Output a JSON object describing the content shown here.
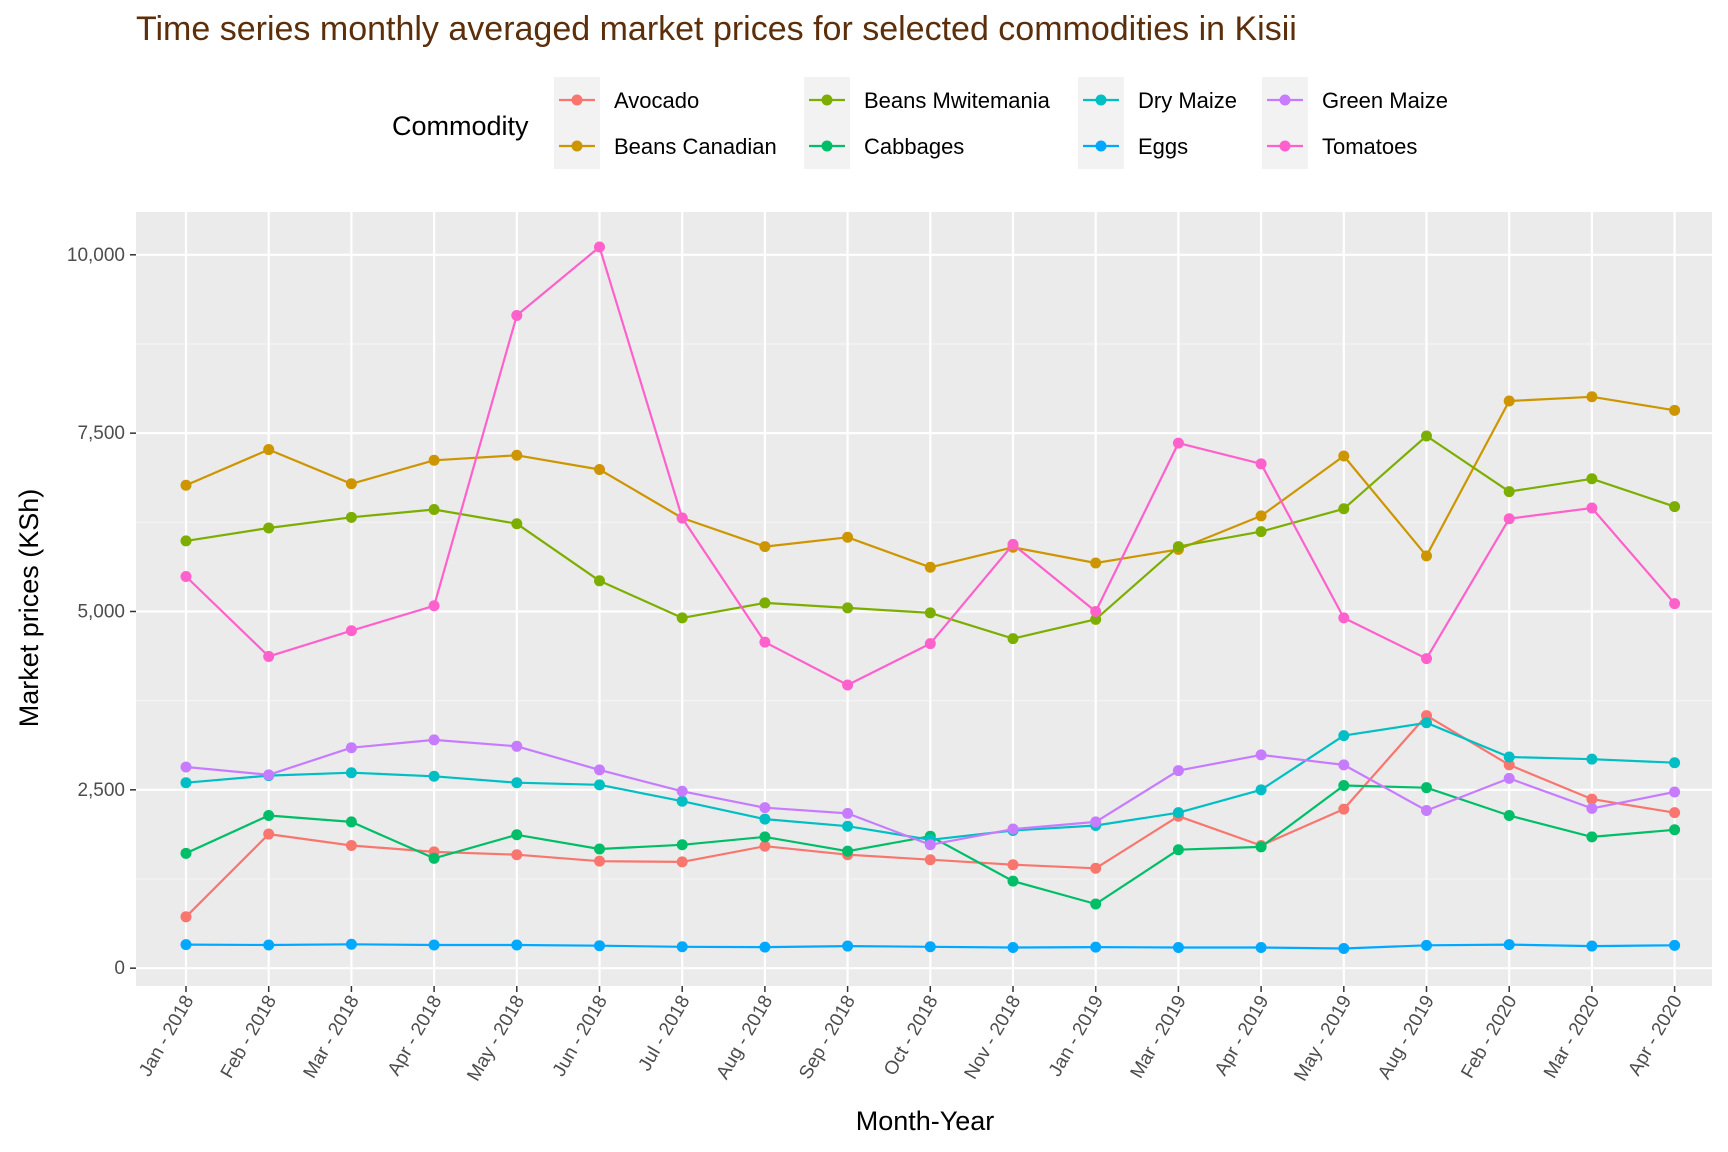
{
  "chart_data": {
    "type": "line",
    "title": "Time series monthly averaged market prices for selected commodities in Kisii",
    "xlabel": "Month-Year",
    "ylabel": "Market prices (KSh)",
    "legend_title": "Commodity",
    "legend_position": "top",
    "grid": true,
    "ylim": [
      -250,
      10600
    ],
    "yticks": [
      0,
      2500,
      5000,
      7500,
      10000
    ],
    "ytick_labels": [
      "0",
      "2,500",
      "5,000",
      "7,500",
      "10,000"
    ],
    "categories": [
      "Jan - 2018",
      "Feb - 2018",
      "Mar - 2018",
      "Apr - 2018",
      "May - 2018",
      "Jun - 2018",
      "Jul - 2018",
      "Aug - 2018",
      "Sep - 2018",
      "Oct - 2018",
      "Nov - 2018",
      "Jan - 2019",
      "Mar - 2019",
      "Apr - 2019",
      "May - 2019",
      "Aug - 2019",
      "Feb - 2020",
      "Mar - 2020",
      "Apr - 2020"
    ],
    "series": [
      {
        "name": "Avocado",
        "color": "#F8766D",
        "values": [
          720,
          1880,
          1720,
          1630,
          1590,
          1500,
          1490,
          1710,
          1590,
          1520,
          1450,
          1400,
          2130,
          1720,
          2230,
          3540,
          2850,
          2370,
          2180
        ]
      },
      {
        "name": "Beans Canadian",
        "color": "#CD9600",
        "values": [
          6770,
          7270,
          6790,
          7120,
          7190,
          6990,
          6310,
          5910,
          6040,
          5620,
          5900,
          5680,
          5870,
          6340,
          7180,
          5780,
          7950,
          8010,
          7820
        ]
      },
      {
        "name": "Beans Mwitemania",
        "color": "#7CAE00",
        "values": [
          5990,
          6170,
          6320,
          6430,
          6230,
          5430,
          4910,
          5120,
          5050,
          4980,
          4620,
          4890,
          5910,
          6120,
          6440,
          7460,
          6680,
          6860,
          6470
        ]
      },
      {
        "name": "Cabbages",
        "color": "#00BE67",
        "values": [
          1610,
          2140,
          2050,
          1540,
          1870,
          1670,
          1730,
          1840,
          1640,
          1850,
          1220,
          900,
          1660,
          1700,
          2560,
          2530,
          2140,
          1840,
          1940
        ]
      },
      {
        "name": "Dry Maize",
        "color": "#00BFC4",
        "values": [
          2600,
          2700,
          2740,
          2690,
          2600,
          2570,
          2340,
          2090,
          1990,
          1800,
          1930,
          2000,
          2180,
          2500,
          3260,
          3440,
          2960,
          2930,
          2880
        ]
      },
      {
        "name": "Eggs",
        "color": "#00A9FF",
        "values": [
          330,
          325,
          335,
          325,
          325,
          315,
          300,
          295,
          310,
          300,
          290,
          295,
          290,
          290,
          275,
          320,
          330,
          310,
          320
        ]
      },
      {
        "name": "Green Maize",
        "color": "#C77CFF",
        "values": [
          2820,
          2710,
          3090,
          3200,
          3110,
          2780,
          2480,
          2250,
          2170,
          1730,
          1950,
          2050,
          2770,
          2990,
          2850,
          2210,
          2660,
          2240,
          2470
        ]
      },
      {
        "name": "Tomatoes",
        "color": "#FF61CC",
        "values": [
          5490,
          4370,
          4730,
          5080,
          9150,
          10110,
          6310,
          4570,
          3970,
          4550,
          5940,
          5000,
          7360,
          7070,
          4910,
          4340,
          6300,
          6450,
          5110
        ]
      }
    ]
  },
  "colors": {
    "panel_background": "#EBEBEB",
    "grid_major": "#FFFFFF",
    "grid_minor": "#F4F4F4",
    "title": "#5c2e0a",
    "tick_text": "#4d4d4d",
    "tick_mark": "#333333",
    "legend_key_background": "#F2F2F2"
  }
}
